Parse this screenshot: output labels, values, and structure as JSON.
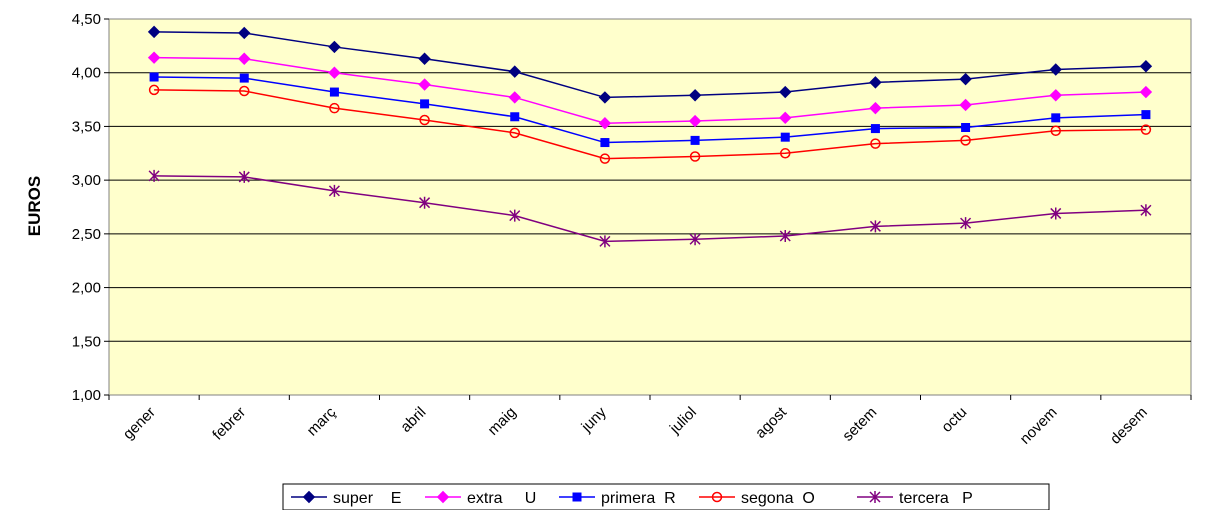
{
  "chart_data": {
    "type": "line",
    "title": "",
    "xlabel": "",
    "ylabel": "EUROS",
    "ylim": [
      1.0,
      4.5
    ],
    "yticks": [
      "1,00",
      "1,50",
      "2,00",
      "2,50",
      "3,00",
      "3,50",
      "4,00",
      "4,50"
    ],
    "grid": "horizontal",
    "legend_position": "bottom",
    "plot_background": "#FFFFCC",
    "categories": [
      "gener",
      "febrer",
      "març",
      "abril",
      "maig",
      "juny",
      "juliol",
      "agost",
      "setem",
      "octu",
      "novem",
      "desem"
    ],
    "series": [
      {
        "name": "super    E",
        "color": "#000080",
        "marker": "diamond",
        "values": [
          4.38,
          4.37,
          4.24,
          4.13,
          4.01,
          3.77,
          3.79,
          3.82,
          3.91,
          3.94,
          4.03,
          4.06
        ]
      },
      {
        "name": "extra     U",
        "color": "#FF00FF",
        "marker": "diamond",
        "values": [
          4.14,
          4.13,
          4.0,
          3.89,
          3.77,
          3.53,
          3.55,
          3.58,
          3.67,
          3.7,
          3.79,
          3.82
        ]
      },
      {
        "name": "primera  R",
        "color": "#0000FF",
        "marker": "square",
        "values": [
          3.96,
          3.95,
          3.82,
          3.71,
          3.59,
          3.35,
          3.37,
          3.4,
          3.48,
          3.49,
          3.58,
          3.61
        ]
      },
      {
        "name": "segona  O",
        "color": "#FF0000",
        "marker": "circle",
        "values": [
          3.84,
          3.83,
          3.67,
          3.56,
          3.44,
          3.2,
          3.22,
          3.25,
          3.34,
          3.37,
          3.46,
          3.47
        ]
      },
      {
        "name": "tercera   P",
        "color": "#800080",
        "marker": "star",
        "values": [
          3.04,
          3.03,
          2.9,
          2.79,
          2.67,
          2.43,
          2.45,
          2.48,
          2.57,
          2.6,
          2.69,
          2.72
        ]
      }
    ]
  }
}
